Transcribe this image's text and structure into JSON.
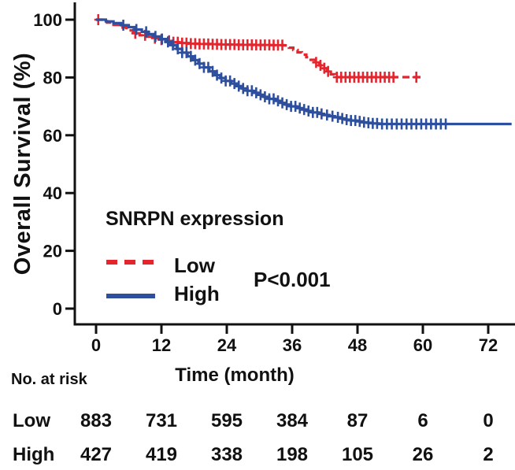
{
  "colors": {
    "low": "#e4252e",
    "high": "#2d4f9e",
    "axis": "#111111",
    "background": "#ffffff"
  },
  "chart_data": {
    "type": "line",
    "subtype": "kaplan-meier-survival",
    "title": "",
    "xlabel": "Time (month)",
    "ylabel": "Overall Survival (%)",
    "legend_title": "SNRPN expression",
    "legend_position": "inside-lower-left",
    "p_value": "P<0.001",
    "x_ticks": [
      0,
      12,
      24,
      36,
      48,
      60,
      72
    ],
    "y_ticks": [
      0,
      20,
      40,
      60,
      80,
      100
    ],
    "xlim": [
      -4,
      77
    ],
    "ylim": [
      0,
      100
    ],
    "grid": false,
    "series": [
      {
        "name": "Low",
        "color": "#e4252e",
        "line_style": "dashed",
        "steps": [
          [
            0,
            100
          ],
          [
            2,
            99
          ],
          [
            3.2,
            98.2
          ],
          [
            4.4,
            97.3
          ],
          [
            5.6,
            96.3
          ],
          [
            6.8,
            95.3
          ],
          [
            8,
            94.6
          ],
          [
            9.2,
            94.1
          ],
          [
            10.4,
            93.6
          ],
          [
            11.6,
            93.1
          ],
          [
            12.8,
            92.7
          ],
          [
            14,
            92.2
          ],
          [
            15.2,
            91.9
          ],
          [
            17,
            91.7
          ],
          [
            19,
            91.6
          ],
          [
            21,
            91.5
          ],
          [
            23,
            91.4
          ],
          [
            26,
            91.3
          ],
          [
            29,
            91.25
          ],
          [
            32,
            91.2
          ],
          [
            34.5,
            91.1
          ],
          [
            35.4,
            90.3
          ],
          [
            36.2,
            89.5
          ],
          [
            37,
            88.7
          ],
          [
            37.8,
            87.9
          ],
          [
            38.6,
            87
          ],
          [
            39.4,
            86.1
          ],
          [
            40.2,
            85.2
          ],
          [
            41,
            84.2
          ],
          [
            41.7,
            83.2
          ],
          [
            42.4,
            82.1
          ],
          [
            43.1,
            81.1
          ],
          [
            43.8,
            80.1
          ]
        ],
        "end_month": 59.7,
        "censor_months": [
          0.4,
          7.2,
          9,
          10.8,
          12,
          13.4,
          14.2,
          15,
          15.8,
          16.6,
          17.4,
          18.2,
          19,
          19.8,
          20.6,
          21.4,
          22.2,
          23,
          23.8,
          24.6,
          25.4,
          26.2,
          27,
          27.8,
          28.6,
          29.4,
          30.2,
          31,
          31.8,
          32.6,
          33.4,
          34.2,
          40.4,
          41.2,
          41.9,
          42.6,
          44.2,
          45,
          45.8,
          46.6,
          47.4,
          48.2,
          49,
          49.8,
          50.6,
          51.4,
          52.2,
          53,
          53.8,
          54.6,
          58.8
        ]
      },
      {
        "name": "High",
        "color": "#2d4f9e",
        "line_style": "solid",
        "steps": [
          [
            0,
            100
          ],
          [
            1.8,
            99.4
          ],
          [
            3.2,
            98.8
          ],
          [
            4.6,
            98.1
          ],
          [
            6,
            97.4
          ],
          [
            7.2,
            96.6
          ],
          [
            8.4,
            95.8
          ],
          [
            9.6,
            95
          ],
          [
            10.8,
            94.2
          ],
          [
            11.8,
            93.3
          ],
          [
            12.8,
            92.3
          ],
          [
            13.8,
            91.2
          ],
          [
            14.8,
            89.9
          ],
          [
            15.8,
            88.6
          ],
          [
            16.8,
            87.3
          ],
          [
            17.8,
            86
          ],
          [
            18.8,
            84.8
          ],
          [
            19.8,
            83.5
          ],
          [
            20.8,
            82.1
          ],
          [
            21.8,
            80.8
          ],
          [
            22.8,
            79.8
          ],
          [
            23.8,
            78.8
          ],
          [
            24.8,
            77.9
          ],
          [
            25.8,
            77
          ],
          [
            26.8,
            76.2
          ],
          [
            27.8,
            75.4
          ],
          [
            28.8,
            74.7
          ],
          [
            29.8,
            74
          ],
          [
            30.8,
            73.3
          ],
          [
            31.8,
            72.6
          ],
          [
            32.8,
            71.9
          ],
          [
            33.8,
            71.2
          ],
          [
            34.8,
            70.6
          ],
          [
            35.8,
            70
          ],
          [
            36.8,
            69.4
          ],
          [
            37.8,
            68.9
          ],
          [
            38.8,
            68.4
          ],
          [
            39.8,
            67.9
          ],
          [
            40.8,
            67.4
          ],
          [
            41.8,
            67
          ],
          [
            42.8,
            66.6
          ],
          [
            43.8,
            66.2
          ],
          [
            44.8,
            65.8
          ],
          [
            45.8,
            65.4
          ],
          [
            46.8,
            65.1
          ],
          [
            47.8,
            64.8
          ],
          [
            48.8,
            64.5
          ],
          [
            49.8,
            64.3
          ],
          [
            50.8,
            64.1
          ],
          [
            51.8,
            63.9
          ]
        ],
        "end_month": 76.3,
        "censor_months": [
          5,
          7.4,
          9.2,
          10.9,
          12.1,
          13.2,
          14.1,
          15,
          15.8,
          16.6,
          17.4,
          18.2,
          19,
          19.8,
          20.6,
          21.4,
          22.2,
          23,
          23.8,
          24.6,
          25.4,
          26.2,
          27,
          27.8,
          28.6,
          29.4,
          30.2,
          31,
          31.8,
          32.6,
          33.4,
          34.2,
          35,
          35.8,
          36.6,
          37.4,
          38.2,
          39,
          39.8,
          40.6,
          41.4,
          42.4,
          43.4,
          44.4,
          45.2,
          46,
          46.8,
          47.6,
          48.4,
          49.2,
          50,
          50.8,
          51.6,
          52.5,
          53.4,
          54.3,
          55.2,
          56.1,
          57,
          57.9,
          58.8,
          59.7,
          60.6,
          61.5,
          62.4,
          63.3,
          64.2
        ]
      }
    ],
    "risk_table": {
      "title": "No. at risk",
      "time_points": [
        0,
        12,
        24,
        36,
        48,
        60,
        72
      ],
      "rows": [
        {
          "label": "Low",
          "values": [
            883,
            731,
            595,
            384,
            87,
            6,
            0
          ]
        },
        {
          "label": "High",
          "values": [
            427,
            419,
            338,
            198,
            105,
            26,
            2
          ]
        }
      ]
    }
  }
}
